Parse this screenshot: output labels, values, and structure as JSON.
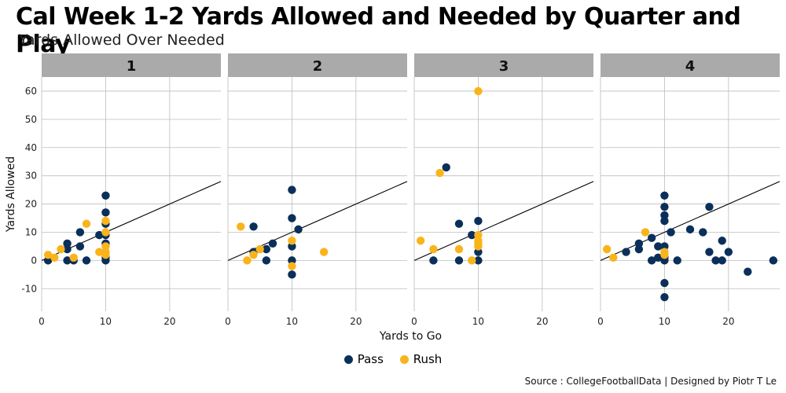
{
  "title": "Cal Week 1-2 Yards Allowed and Needed by Quarter and Play",
  "subtitle": "Yards Allowed Over Needed",
  "caption": "Source : CollegeFootballData | Designed by Piotr T Le",
  "colors": {
    "pass": "#0a2f5a",
    "rush": "#f9b41b",
    "strip": "#aaaaaa",
    "grid": "#bdbdbd"
  },
  "chart_data": {
    "type": "scatter",
    "facet_by": "Quarter",
    "xlabel": "Yards to Go",
    "ylabel": "Yards Allowed",
    "xlim": [
      0,
      28
    ],
    "ylim": [
      -18,
      65
    ],
    "xticks": [
      0,
      10,
      20
    ],
    "yticks": [
      -10,
      0,
      10,
      20,
      30,
      40,
      50,
      60
    ],
    "reference_line": {
      "slope": 1,
      "intercept": 0
    },
    "legend": [
      "Pass",
      "Rush"
    ],
    "panels": [
      {
        "label": "1",
        "pass": [
          [
            1,
            0
          ],
          [
            4,
            0
          ],
          [
            4,
            4
          ],
          [
            4,
            6
          ],
          [
            5,
            0
          ],
          [
            6,
            5
          ],
          [
            6,
            10
          ],
          [
            7,
            0
          ],
          [
            9,
            9
          ],
          [
            10,
            0
          ],
          [
            10,
            1
          ],
          [
            10,
            6
          ],
          [
            10,
            9
          ],
          [
            10,
            13
          ],
          [
            10,
            17
          ],
          [
            10,
            23
          ]
        ],
        "rush": [
          [
            1,
            2
          ],
          [
            2,
            1
          ],
          [
            3,
            4
          ],
          [
            5,
            1
          ],
          [
            7,
            13
          ],
          [
            9,
            3
          ],
          [
            10,
            2
          ],
          [
            10,
            3
          ],
          [
            10,
            5
          ],
          [
            10,
            10
          ],
          [
            10,
            14
          ]
        ]
      },
      {
        "label": "2",
        "pass": [
          [
            4,
            3
          ],
          [
            4,
            12
          ],
          [
            6,
            0
          ],
          [
            6,
            4
          ],
          [
            7,
            6
          ],
          [
            10,
            -5
          ],
          [
            10,
            0
          ],
          [
            10,
            5
          ],
          [
            10,
            15
          ],
          [
            10,
            25
          ],
          [
            11,
            11
          ]
        ],
        "rush": [
          [
            2,
            12
          ],
          [
            3,
            0
          ],
          [
            4,
            2
          ],
          [
            5,
            4
          ],
          [
            10,
            -2
          ],
          [
            10,
            7
          ],
          [
            15,
            3
          ]
        ]
      },
      {
        "label": "3",
        "pass": [
          [
            3,
            0
          ],
          [
            5,
            33
          ],
          [
            7,
            0
          ],
          [
            7,
            13
          ],
          [
            9,
            9
          ],
          [
            10,
            0
          ],
          [
            10,
            3
          ],
          [
            10,
            14
          ]
        ],
        "rush": [
          [
            1,
            7
          ],
          [
            3,
            4
          ],
          [
            4,
            31
          ],
          [
            7,
            4
          ],
          [
            9,
            0
          ],
          [
            10,
            5
          ],
          [
            10,
            6
          ],
          [
            10,
            7
          ],
          [
            10,
            9
          ],
          [
            10,
            60
          ]
        ]
      },
      {
        "label": "4",
        "pass": [
          [
            4,
            3
          ],
          [
            6,
            4
          ],
          [
            6,
            6
          ],
          [
            8,
            0
          ],
          [
            8,
            8
          ],
          [
            9,
            1
          ],
          [
            9,
            5
          ],
          [
            10,
            -13
          ],
          [
            10,
            -8
          ],
          [
            10,
            0
          ],
          [
            10,
            1
          ],
          [
            10,
            5
          ],
          [
            10,
            14
          ],
          [
            10,
            16
          ],
          [
            10,
            19
          ],
          [
            10,
            23
          ],
          [
            11,
            10
          ],
          [
            12,
            0
          ],
          [
            14,
            11
          ],
          [
            16,
            10
          ],
          [
            17,
            19
          ],
          [
            17,
            3
          ],
          [
            18,
            0
          ],
          [
            19,
            0
          ],
          [
            19,
            7
          ],
          [
            20,
            3
          ],
          [
            23,
            -4
          ],
          [
            27,
            0
          ]
        ],
        "rush": [
          [
            1,
            4
          ],
          [
            2,
            1
          ],
          [
            7,
            10
          ],
          [
            10,
            2
          ],
          [
            10,
            3
          ]
        ]
      }
    ]
  }
}
